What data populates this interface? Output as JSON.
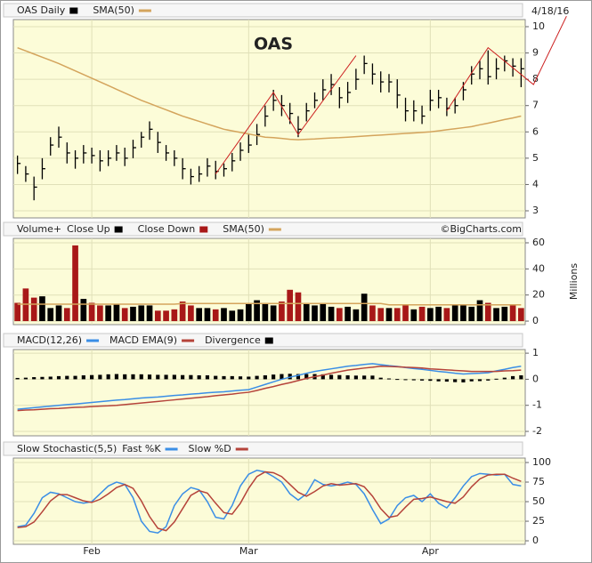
{
  "chart_data": [
    {
      "type": "ohlc",
      "date": "4/18/16",
      "annotation": "OAS",
      "trend_color": "#cc2020",
      "ylim": [
        2.73,
        10.27
      ],
      "yticks": [
        3,
        4,
        5,
        6,
        7,
        8,
        9,
        10
      ],
      "trend_lines": [
        [
          [
            24,
            4.4
          ],
          [
            31,
            7.5
          ],
          [
            34,
            5.9
          ],
          [
            41,
            8.9
          ]
        ],
        [
          [
            52,
            6.8
          ],
          [
            57,
            9.2
          ],
          [
            62.5,
            7.8
          ],
          [
            66.5,
            10.4
          ]
        ]
      ],
      "series": [
        {
          "name": "OAS Daily",
          "color": "#000000",
          "high": [
            5.1,
            4.7,
            4.3,
            5.0,
            5.8,
            6.2,
            5.6,
            5.3,
            5.5,
            5.4,
            5.3,
            5.3,
            5.5,
            5.4,
            5.7,
            6.0,
            6.4,
            6.0,
            5.5,
            5.3,
            5.0,
            4.6,
            4.7,
            5.0,
            4.9,
            4.8,
            5.2,
            5.6,
            5.9,
            6.3,
            7.0,
            7.6,
            7.4,
            7.1,
            6.6,
            7.1,
            7.5,
            8.0,
            8.2,
            7.7,
            7.9,
            8.4,
            8.9,
            8.6,
            8.3,
            8.2,
            8.0,
            7.3,
            7.2,
            7.0,
            7.6,
            7.6,
            7.3,
            7.3,
            7.9,
            8.5,
            8.7,
            9.1,
            8.8,
            8.9,
            8.8,
            8.8
          ],
          "low": [
            4.4,
            4.1,
            3.4,
            4.2,
            5.1,
            5.4,
            4.8,
            4.6,
            4.8,
            4.8,
            4.5,
            4.7,
            4.9,
            4.7,
            5.0,
            5.4,
            5.7,
            5.2,
            4.9,
            4.7,
            4.2,
            4.0,
            4.1,
            4.3,
            4.2,
            4.3,
            4.5,
            4.9,
            5.2,
            5.5,
            6.2,
            6.8,
            6.6,
            6.3,
            5.8,
            6.4,
            6.9,
            7.2,
            7.4,
            6.9,
            7.1,
            7.6,
            8.2,
            7.8,
            7.5,
            7.5,
            6.9,
            6.4,
            6.4,
            6.3,
            6.8,
            6.9,
            6.6,
            6.7,
            7.2,
            7.8,
            8.0,
            7.8,
            8.0,
            8.3,
            8.1,
            7.7
          ],
          "close": [
            4.8,
            4.4,
            3.9,
            4.6,
            5.5,
            5.8,
            5.2,
            5.0,
            5.2,
            5.1,
            4.9,
            5.0,
            5.2,
            5.0,
            5.4,
            5.8,
            6.1,
            5.6,
            5.2,
            5.0,
            4.6,
            4.3,
            4.4,
            4.7,
            4.5,
            4.6,
            4.9,
            5.3,
            5.5,
            5.9,
            6.6,
            7.2,
            7.0,
            6.7,
            6.1,
            6.8,
            7.2,
            7.6,
            7.8,
            7.3,
            7.5,
            8.0,
            8.6,
            8.2,
            7.9,
            7.9,
            7.4,
            6.8,
            6.8,
            6.6,
            7.2,
            7.3,
            6.9,
            7.0,
            7.6,
            8.2,
            8.4,
            8.1,
            8.4,
            8.7,
            8.5,
            8.4
          ]
        },
        {
          "name": "SMA(50)",
          "color": "#d4a45c",
          "type": "line",
          "values": [
            9.2,
            9.08,
            8.96,
            8.84,
            8.72,
            8.6,
            8.46,
            8.32,
            8.18,
            8.04,
            7.9,
            7.76,
            7.62,
            7.48,
            7.34,
            7.2,
            7.08,
            6.96,
            6.84,
            6.72,
            6.6,
            6.5,
            6.4,
            6.3,
            6.2,
            6.1,
            6.04,
            5.98,
            5.92,
            5.86,
            5.8,
            5.78,
            5.75,
            5.72,
            5.7,
            5.72,
            5.73,
            5.75,
            5.77,
            5.78,
            5.8,
            5.82,
            5.84,
            5.86,
            5.88,
            5.9,
            5.92,
            5.94,
            5.96,
            5.98,
            6.0,
            6.04,
            6.08,
            6.12,
            6.16,
            6.2,
            6.27,
            6.33,
            6.4,
            6.47,
            6.53,
            6.6
          ]
        }
      ]
    },
    {
      "type": "bar",
      "title": "Volume+",
      "watermark": "©BigCharts.com",
      "ylabel": "Millions",
      "ylim": [
        -2.7,
        63.4
      ],
      "yticks": [
        0,
        20,
        40,
        60
      ],
      "series": [
        {
          "name": "Close Up",
          "color": "#000000",
          "values": [
            null,
            null,
            null,
            19,
            10,
            12,
            null,
            null,
            17,
            null,
            null,
            12,
            13,
            null,
            11,
            12,
            12,
            null,
            null,
            null,
            null,
            null,
            10,
            10,
            null,
            10,
            8,
            9,
            14,
            16,
            14,
            12,
            null,
            null,
            null,
            14,
            12,
            14,
            11,
            null,
            11,
            9,
            21,
            null,
            null,
            10,
            null,
            null,
            9,
            null,
            10,
            11,
            null,
            12,
            12,
            11,
            16,
            null,
            10,
            11,
            null,
            null
          ]
        },
        {
          "name": "Close Down",
          "color": "#a81818",
          "values": [
            14,
            25,
            18,
            null,
            null,
            null,
            10,
            58,
            null,
            14,
            12,
            null,
            null,
            10,
            null,
            null,
            null,
            8,
            8,
            9,
            15,
            12,
            null,
            null,
            9,
            null,
            null,
            null,
            null,
            null,
            null,
            null,
            15,
            24,
            22,
            null,
            null,
            null,
            null,
            10,
            null,
            null,
            null,
            12,
            10,
            null,
            10,
            12,
            null,
            11,
            null,
            null,
            10,
            null,
            null,
            null,
            null,
            14,
            null,
            null,
            12,
            10
          ]
        },
        {
          "name": "SMA(50)",
          "color": "#d4a45c",
          "type": "line",
          "values": [
            13,
            13,
            13,
            13,
            13,
            13,
            13,
            13,
            13,
            13,
            13,
            13,
            13,
            13,
            13,
            13,
            13,
            13,
            13,
            13,
            13.5,
            13.5,
            13.5,
            13.5,
            13.5,
            13.5,
            13.5,
            13.5,
            13.5,
            13.5,
            13.5,
            13.5,
            13.5,
            13.5,
            13.5,
            13.5,
            13.5,
            13.5,
            13.5,
            13.5,
            13.5,
            13.5,
            13.5,
            13.5,
            13.5,
            12.5,
            12.5,
            12.5,
            12.5,
            12.5,
            12.5,
            12.5,
            12.5,
            12.5,
            12.5,
            12.5,
            12.5,
            12.5,
            12.5,
            12.5,
            12.5,
            12.5
          ]
        }
      ]
    },
    {
      "type": "line",
      "ylim": [
        -2.17,
        1.14
      ],
      "yticks": [
        -2,
        -1,
        0,
        1
      ],
      "series": [
        {
          "name": "MACD(12,26)",
          "color": "#3a8ee6",
          "values": [
            -1.15,
            -1.12,
            -1.09,
            -1.06,
            -1.03,
            -1.0,
            -0.97,
            -0.95,
            -0.92,
            -0.89,
            -0.86,
            -0.83,
            -0.8,
            -0.78,
            -0.75,
            -0.72,
            -0.7,
            -0.68,
            -0.65,
            -0.62,
            -0.6,
            -0.57,
            -0.55,
            -0.52,
            -0.5,
            -0.48,
            -0.45,
            -0.42,
            -0.4,
            -0.3,
            -0.2,
            -0.1,
            0,
            0.08,
            0.15,
            0.23,
            0.3,
            0.35,
            0.4,
            0.45,
            0.5,
            0.53,
            0.57,
            0.6,
            0.56,
            0.52,
            0.49,
            0.45,
            0.41,
            0.38,
            0.34,
            0.3,
            0.27,
            0.23,
            0.2,
            0.22,
            0.23,
            0.25,
            0.32,
            0.38,
            0.45,
            0.5
          ]
        },
        {
          "name": "MACD EMA(9)",
          "color": "#b5433a",
          "values": [
            -1.2,
            -1.18,
            -1.17,
            -1.15,
            -1.13,
            -1.12,
            -1.1,
            -1.08,
            -1.07,
            -1.05,
            -1.03,
            -1.02,
            -1.0,
            -0.97,
            -0.94,
            -0.91,
            -0.88,
            -0.85,
            -0.82,
            -0.79,
            -0.76,
            -0.73,
            -0.7,
            -0.67,
            -0.63,
            -0.6,
            -0.57,
            -0.53,
            -0.5,
            -0.43,
            -0.35,
            -0.28,
            -0.2,
            -0.13,
            -0.05,
            0.03,
            0.1,
            0.16,
            0.23,
            0.29,
            0.35,
            0.39,
            0.43,
            0.46,
            0.5,
            0.49,
            0.48,
            0.46,
            0.45,
            0.43,
            0.4,
            0.38,
            0.36,
            0.34,
            0.32,
            0.3,
            0.3,
            0.3,
            0.3,
            0.32,
            0.33,
            0.35
          ]
        },
        {
          "name": "Divergence",
          "color": "#000000",
          "type": "bar",
          "values": [
            0.05,
            0.06,
            0.08,
            0.09,
            0.1,
            0.12,
            0.13,
            0.13,
            0.15,
            0.16,
            0.17,
            0.19,
            0.2,
            0.19,
            0.19,
            0.19,
            0.18,
            0.17,
            0.17,
            0.17,
            0.16,
            0.16,
            0.15,
            0.15,
            0.13,
            0.12,
            0.12,
            0.11,
            0.1,
            0.13,
            0.15,
            0.18,
            0.2,
            0.21,
            0.2,
            0.2,
            0.2,
            0.19,
            0.17,
            0.16,
            0.15,
            0.14,
            0.14,
            0.14,
            0.06,
            0.03,
            0.01,
            -0.01,
            -0.04,
            -0.05,
            -0.06,
            -0.08,
            -0.09,
            -0.11,
            -0.12,
            -0.08,
            -0.07,
            -0.05,
            0.02,
            0.06,
            0.12,
            0.15
          ]
        }
      ]
    },
    {
      "type": "line",
      "title": "Slow Stochastic(5,5)",
      "ylim": [
        -4.5,
        105.7
      ],
      "yticks": [
        0,
        25,
        50,
        75,
        100
      ],
      "categories": [
        null,
        null,
        null,
        null,
        null,
        null,
        null,
        null,
        null,
        "Feb",
        null,
        null,
        null,
        null,
        null,
        null,
        null,
        null,
        null,
        null,
        null,
        null,
        null,
        null,
        null,
        null,
        null,
        null,
        "Mar",
        null,
        null,
        null,
        null,
        null,
        null,
        null,
        null,
        null,
        null,
        null,
        null,
        null,
        null,
        null,
        null,
        null,
        null,
        null,
        null,
        null,
        "Apr",
        null,
        null,
        null,
        null,
        null,
        null,
        null,
        null,
        null,
        null,
        null
      ],
      "series": [
        {
          "name": "Fast %K",
          "color": "#3a8ee6",
          "values": [
            18,
            20,
            35,
            55,
            62,
            60,
            55,
            50,
            48,
            50,
            60,
            70,
            75,
            72,
            55,
            25,
            12,
            10,
            18,
            45,
            60,
            68,
            65,
            50,
            30,
            28,
            45,
            70,
            85,
            90,
            88,
            82,
            75,
            60,
            52,
            60,
            78,
            72,
            70,
            72,
            75,
            72,
            60,
            40,
            22,
            28,
            45,
            55,
            58,
            50,
            60,
            48,
            42,
            55,
            70,
            82,
            86,
            85,
            84,
            85,
            72,
            70
          ]
        },
        {
          "name": "Slow %D",
          "color": "#b5433a",
          "values": [
            17,
            18,
            24,
            37,
            51,
            59,
            59,
            55,
            51,
            49,
            53,
            60,
            68,
            72,
            67,
            51,
            31,
            16,
            13,
            24,
            41,
            58,
            64,
            61,
            48,
            36,
            34,
            48,
            67,
            82,
            88,
            87,
            82,
            72,
            62,
            57,
            63,
            70,
            73,
            71,
            72,
            73,
            69,
            57,
            41,
            30,
            32,
            43,
            53,
            54,
            56,
            53,
            50,
            48,
            56,
            69,
            79,
            84,
            85,
            85,
            80,
            76
          ]
        }
      ]
    }
  ]
}
